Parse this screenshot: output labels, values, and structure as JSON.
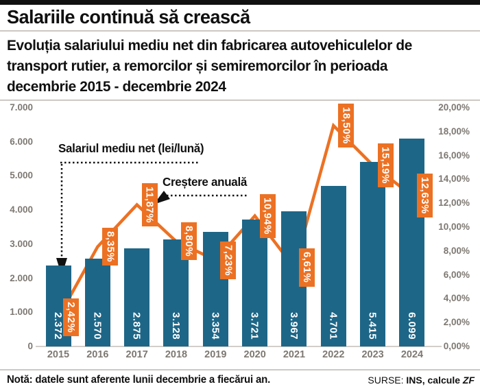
{
  "header": {
    "title": "Salariile continuă să crească",
    "subtitle_lines": [
      "Evoluția salariului mediu net din fabricarea autovehiculelor de",
      "transport rutier, a remorcilor și semiremorcilor  în perioada",
      "decembrie 2015 - decembrie 2024"
    ]
  },
  "chart_data": {
    "type": "bar",
    "title": "Evoluția salariului mediu net din fabricarea autovehiculelor de transport rutier, a remorcilor și semiremorcilor în perioada decembrie 2015 - decembrie 2024",
    "categories": [
      "2015",
      "2016",
      "2017",
      "2018",
      "2019",
      "2020",
      "2021",
      "2022",
      "2023",
      "2024"
    ],
    "series": [
      {
        "name": "Salariul mediu net (lei/lună)",
        "type": "bar",
        "values": [
          2372,
          2570,
          2875,
          3128,
          3354,
          3721,
          3967,
          4701,
          5415,
          6099
        ],
        "labels": [
          "2.372",
          "2.570",
          "2.875",
          "3.128",
          "3.354",
          "3.721",
          "3.967",
          "4.701",
          "5.415",
          "6.099"
        ]
      },
      {
        "name": "Creștere anuală",
        "type": "line",
        "values": [
          2.42,
          8.35,
          11.87,
          8.8,
          7.23,
          10.94,
          6.61,
          18.5,
          15.19,
          12.63
        ],
        "labels": [
          "2,42%",
          "8,35%",
          "11,87%",
          "8,80%",
          "7,23%",
          "10,94%",
          "6,61%",
          "18,50%",
          "15,19%",
          "12,63%"
        ]
      }
    ],
    "left_axis": {
      "min": 0,
      "max": 7000,
      "step": 1000,
      "tick_labels": [
        "0",
        "1.000",
        "2.000",
        "3.000",
        "4.000",
        "5.000",
        "6.000",
        "7.000"
      ]
    },
    "right_axis": {
      "min": 0,
      "max": 20,
      "step": 2,
      "tick_labels": [
        "0,00%",
        "2,00%",
        "4,00%",
        "6,00%",
        "8,00%",
        "10,00%",
        "12,00%",
        "14,00%",
        "16,00%",
        "18,00%",
        "20,00%"
      ]
    },
    "annotations": {
      "bar_series_label": "Salariul mediu net (lei/lună)",
      "line_series_label": "Creștere anuală"
    },
    "legend_position": "inside-annotations",
    "grid": false,
    "colors": {
      "bar": "#1e6687",
      "line": "#ec7123",
      "tick_text": "#7d7872",
      "accent_black": "#111111"
    }
  },
  "footer": {
    "note": "Notă: datele sunt aferente lunii decembrie a fiecărui an.",
    "source_prefix": "SURSE: ",
    "source_main": "INS, calcule ",
    "source_zf": "ZF"
  }
}
